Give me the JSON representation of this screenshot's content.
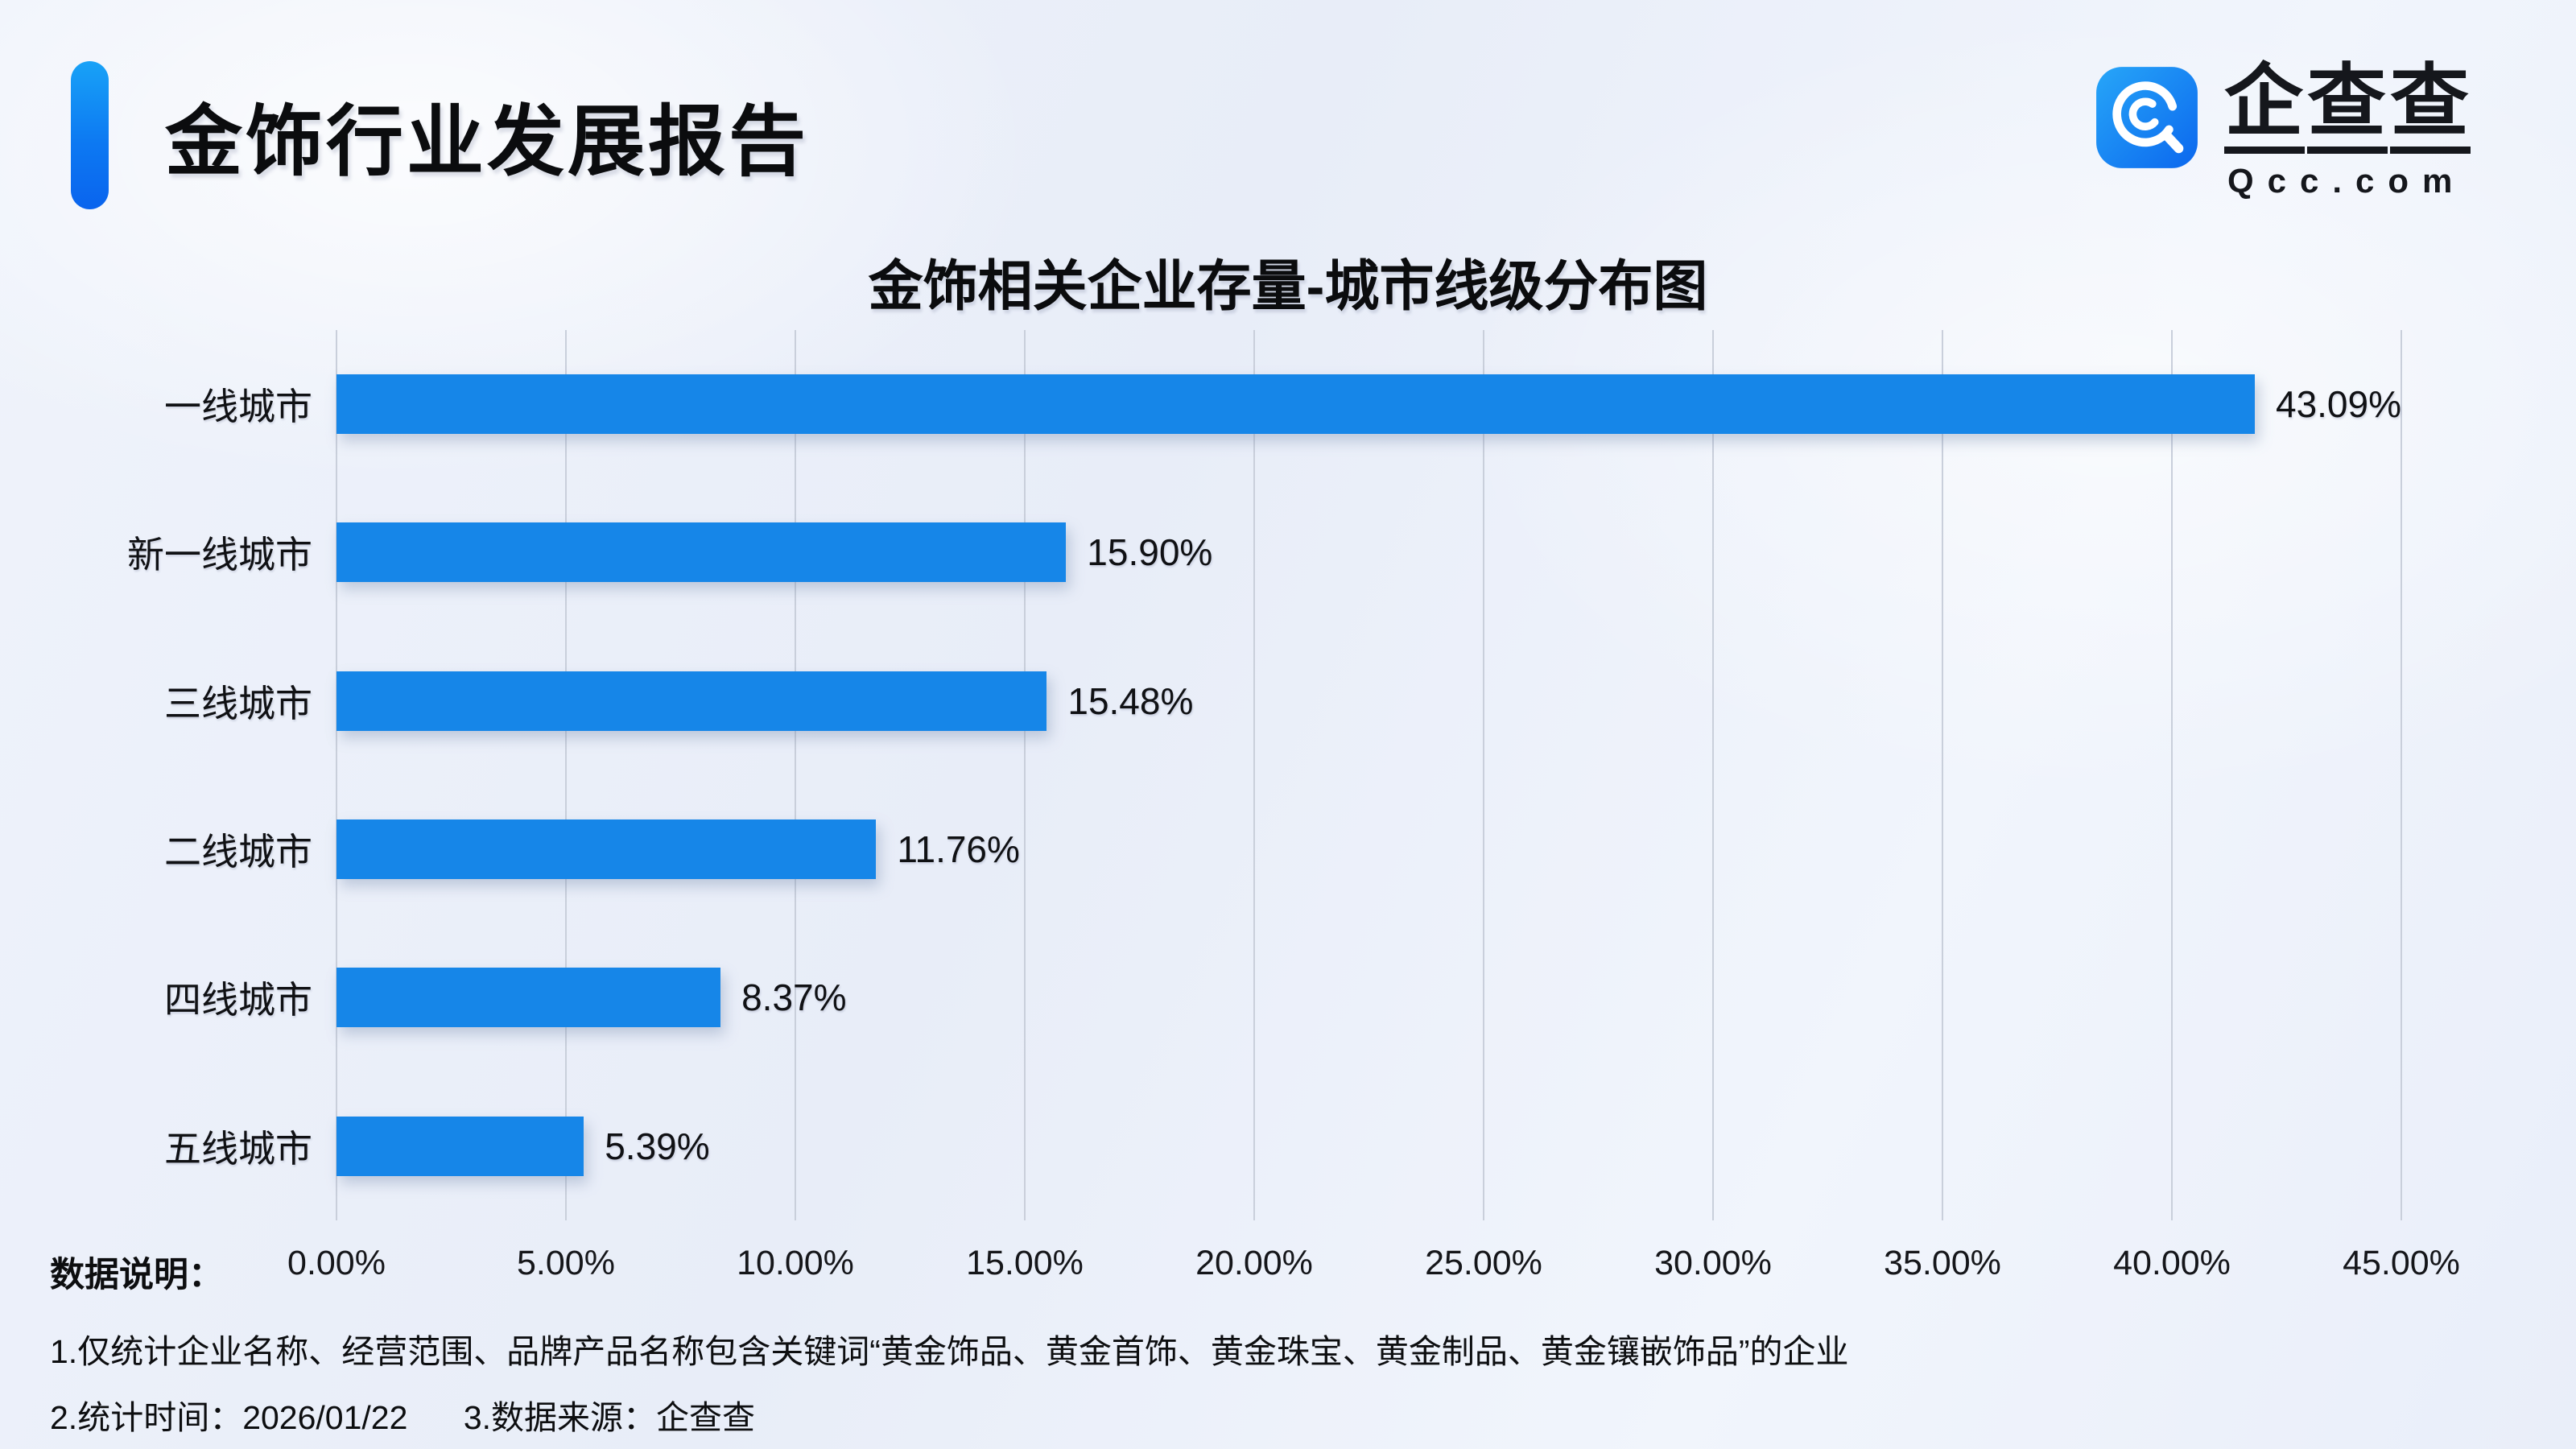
{
  "page": {
    "report_title": "金饰行业发展报告"
  },
  "logo": {
    "brand_cn": "企查查",
    "brand_en": "Qcc.com"
  },
  "chart_data": {
    "type": "bar",
    "orientation": "horizontal",
    "title": "金饰相关企业存量-城市线级分布图",
    "categories": [
      "一线城市",
      "新一线城市",
      "三线城市",
      "二线城市",
      "四线城市",
      "五线城市"
    ],
    "values": [
      43.09,
      15.9,
      15.48,
      11.76,
      8.37,
      5.39
    ],
    "value_labels": [
      "43.09%",
      "15.90%",
      "15.48%",
      "11.76%",
      "8.37%",
      "5.39%"
    ],
    "x_axis": {
      "min": 0,
      "max": 45,
      "ticks": [
        "0.00%",
        "5.00%",
        "10.00%",
        "15.00%",
        "20.00%",
        "25.00%",
        "30.00%",
        "35.00%",
        "40.00%",
        "45.00%"
      ]
    },
    "bar_color": "#1686e8",
    "grid": true,
    "legend": false,
    "sort": "descending"
  },
  "footnotes": {
    "label": "数据说明：",
    "line1": "1.仅统计企业名称、经营范围、品牌产品名称包含关键词“黄金饰品、黄金首饰、黄金珠宝、黄金制品、黄金镶嵌饰品”的企业",
    "line2_part1": "2.统计时间：2026/01/22",
    "line2_part2": "3.数据来源：企查查"
  },
  "colors": {
    "accent_blue": "#1686e8",
    "gridline": "#c9cfdb",
    "background": "#ecf0f9",
    "text": "#101114"
  }
}
